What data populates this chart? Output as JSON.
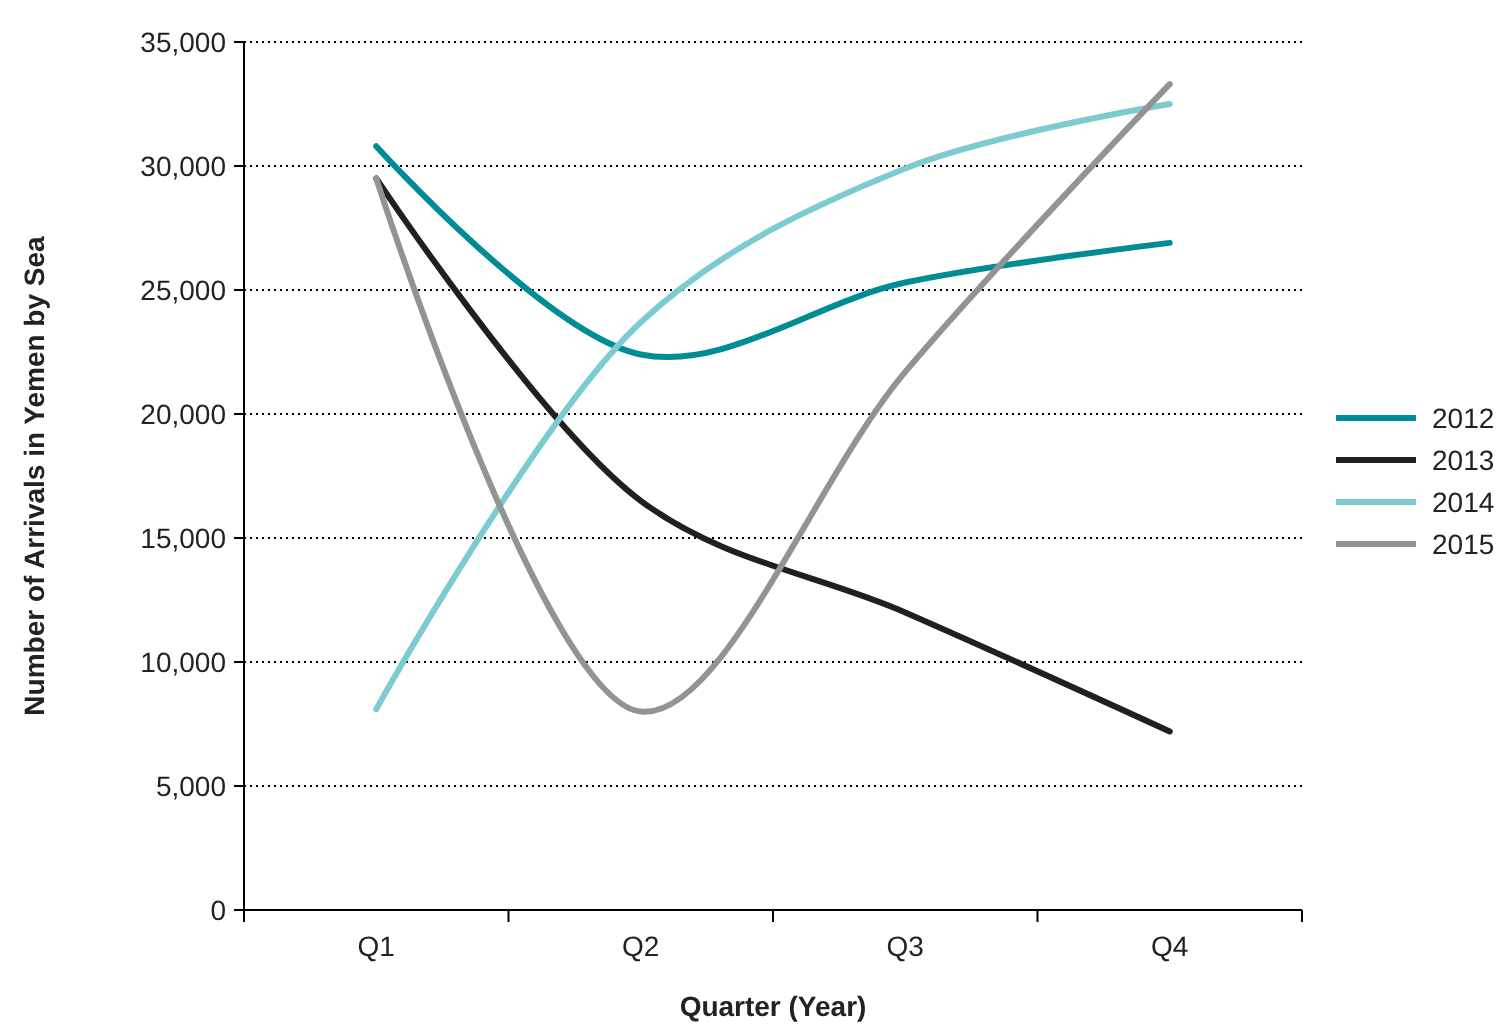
{
  "chart_data": {
    "type": "line",
    "xlabel": "Quarter (Year)",
    "ylabel": "Number of Arrivals in Yemen by Sea",
    "categories": [
      "Q1",
      "Q2",
      "Q3",
      "Q4"
    ],
    "series": [
      {
        "name": "2012",
        "color": "#008c95",
        "values": [
          30800,
          22400,
          25300,
          26900
        ]
      },
      {
        "name": "2013",
        "color": "#231f20",
        "values": [
          29500,
          16500,
          12000,
          7200
        ]
      },
      {
        "name": "2014",
        "color": "#7ccbd0",
        "values": [
          8100,
          23700,
          29900,
          32500
        ]
      },
      {
        "name": "2015",
        "color": "#939393",
        "values": [
          29500,
          8000,
          21700,
          33300
        ]
      }
    ],
    "ylim": [
      0,
      35000
    ],
    "yticks": [
      {
        "value": 0,
        "label": "0"
      },
      {
        "value": 5000,
        "label": "5,000"
      },
      {
        "value": 10000,
        "label": "10,000"
      },
      {
        "value": 15000,
        "label": "15,000"
      },
      {
        "value": 20000,
        "label": "20,000"
      },
      {
        "value": 25000,
        "label": "25,000"
      },
      {
        "value": 30000,
        "label": "30,000"
      },
      {
        "value": 35000,
        "label": "35,000"
      }
    ],
    "grid": "y",
    "legend": "right",
    "marker": "none",
    "line_style": "solid"
  }
}
